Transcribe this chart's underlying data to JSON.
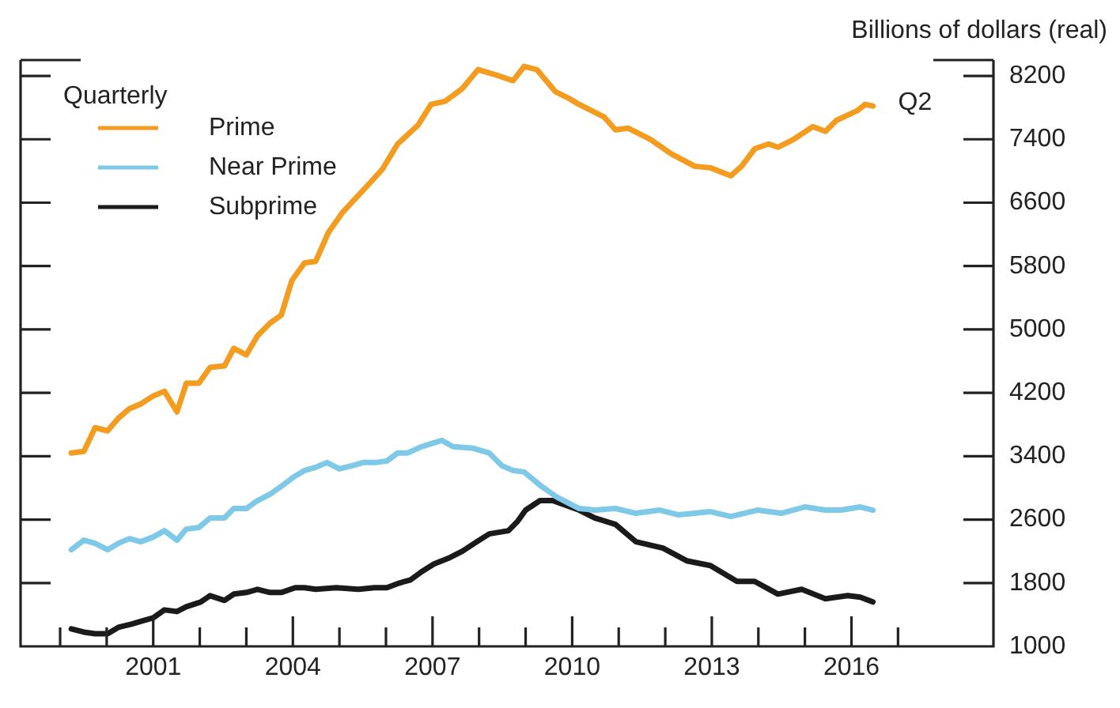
{
  "chart_data": {
    "type": "line",
    "ylabel": "Billions of dollars (real)",
    "legend_title": "Quarterly",
    "legend": "top left",
    "grid": false,
    "marker": "none",
    "line_style": "solid",
    "xlim": [
      1998.15,
      2019.05
    ],
    "ylim": [
      1000,
      8400
    ],
    "xticks": [
      {
        "value": 1999,
        "label": null
      },
      {
        "value": 2000,
        "label": null
      },
      2001,
      {
        "value": 2002,
        "label": null
      },
      {
        "value": 2003,
        "label": null
      },
      2004,
      {
        "value": 2005,
        "label": null
      },
      {
        "value": 2006,
        "label": null
      },
      2007,
      {
        "value": 2008,
        "label": null
      },
      {
        "value": 2009,
        "label": null
      },
      2010,
      {
        "value": 2011,
        "label": null
      },
      {
        "value": 2012,
        "label": null
      },
      2013,
      {
        "value": 2014,
        "label": null
      },
      {
        "value": 2015,
        "label": null
      },
      2016,
      {
        "value": 2017,
        "label": null
      }
    ],
    "yticks": [
      1000,
      1800,
      2600,
      3400,
      4200,
      5000,
      5800,
      6600,
      7400,
      8200
    ],
    "annotations": [
      {
        "text": "Q2",
        "x": 2016.46,
        "y": 7820
      }
    ],
    "series": [
      {
        "name": "Prime",
        "color": "#f39c1f",
        "x": [
          1999.24,
          1999.51,
          1999.75,
          2000.02,
          2000.25,
          2000.49,
          2000.73,
          2001.0,
          2001.24,
          2001.51,
          2001.71,
          2001.98,
          2002.22,
          2002.53,
          2002.73,
          2003.0,
          2003.24,
          2003.51,
          2003.75,
          2003.98,
          2004.25,
          2004.49,
          2004.76,
          2005.07,
          2005.61,
          2005.92,
          2006.25,
          2006.69,
          2006.97,
          2007.27,
          2007.64,
          2007.98,
          2008.32,
          2008.73,
          2008.97,
          2009.24,
          2009.64,
          2009.92,
          2010.15,
          2010.69,
          2010.93,
          2011.2,
          2011.68,
          2012.12,
          2012.63,
          2012.97,
          2013.41,
          2013.64,
          2013.92,
          2014.22,
          2014.42,
          2014.76,
          2015.17,
          2015.44,
          2015.68,
          2016.12,
          2016.29,
          2016.46
        ],
        "values": [
          3440,
          3460,
          3760,
          3720,
          3880,
          4000,
          4060,
          4160,
          4220,
          3960,
          4320,
          4320,
          4520,
          4540,
          4760,
          4680,
          4920,
          5080,
          5180,
          5620,
          5840,
          5860,
          6220,
          6480,
          6820,
          7020,
          7340,
          7580,
          7840,
          7880,
          8040,
          8280,
          8220,
          8140,
          8320,
          8280,
          8000,
          7920,
          7840,
          7680,
          7520,
          7540,
          7400,
          7220,
          7060,
          7040,
          6940,
          7060,
          7280,
          7340,
          7300,
          7400,
          7560,
          7500,
          7640,
          7760,
          7840,
          7820
        ]
      },
      {
        "name": "Near Prime",
        "color": "#7ec8e8",
        "x": [
          1999.24,
          1999.51,
          1999.75,
          2000.02,
          2000.25,
          2000.49,
          2000.73,
          2001.0,
          2001.24,
          2001.51,
          2001.71,
          2001.98,
          2002.22,
          2002.53,
          2002.73,
          2003.0,
          2003.24,
          2003.51,
          2003.75,
          2004.02,
          2004.25,
          2004.49,
          2004.73,
          2005.0,
          2005.27,
          2005.51,
          2005.78,
          2006.02,
          2006.25,
          2006.46,
          2006.76,
          2007.2,
          2007.44,
          2007.88,
          2008.22,
          2008.49,
          2008.73,
          2008.97,
          2009.34,
          2009.68,
          2010.15,
          2010.49,
          2010.93,
          2011.37,
          2011.88,
          2012.29,
          2012.97,
          2013.41,
          2013.98,
          2014.49,
          2015.0,
          2015.44,
          2015.78,
          2016.19,
          2016.46
        ],
        "values": [
          2220,
          2340,
          2300,
          2220,
          2300,
          2360,
          2320,
          2380,
          2460,
          2340,
          2480,
          2500,
          2620,
          2620,
          2740,
          2740,
          2840,
          2920,
          3020,
          3140,
          3220,
          3260,
          3320,
          3240,
          3280,
          3320,
          3320,
          3340,
          3440,
          3440,
          3520,
          3600,
          3520,
          3500,
          3440,
          3280,
          3220,
          3200,
          3020,
          2880,
          2740,
          2720,
          2740,
          2680,
          2720,
          2660,
          2700,
          2640,
          2720,
          2680,
          2760,
          2720,
          2720,
          2760,
          2720
        ]
      },
      {
        "name": "Subprime",
        "color": "#1a1a1a",
        "x": [
          1999.24,
          1999.51,
          1999.75,
          2000.02,
          2000.25,
          2000.53,
          2000.76,
          2001.0,
          2001.24,
          2001.51,
          2001.71,
          2002.02,
          2002.22,
          2002.53,
          2002.73,
          2003.0,
          2003.24,
          2003.51,
          2003.75,
          2004.05,
          2004.25,
          2004.49,
          2004.93,
          2005.41,
          2005.75,
          2006.02,
          2006.29,
          2006.53,
          2006.76,
          2007.03,
          2007.37,
          2007.64,
          2007.95,
          2008.22,
          2008.63,
          2008.83,
          2009.0,
          2009.31,
          2009.58,
          2010.15,
          2010.49,
          2010.93,
          2011.37,
          2011.95,
          2012.46,
          2012.97,
          2013.54,
          2013.92,
          2014.42,
          2014.93,
          2015.44,
          2015.92,
          2016.19,
          2016.46
        ],
        "values": [
          1220,
          1180,
          1160,
          1160,
          1240,
          1280,
          1320,
          1360,
          1460,
          1440,
          1500,
          1560,
          1640,
          1580,
          1660,
          1680,
          1720,
          1680,
          1680,
          1740,
          1740,
          1720,
          1740,
          1720,
          1740,
          1740,
          1800,
          1840,
          1940,
          2040,
          2120,
          2200,
          2320,
          2420,
          2460,
          2580,
          2720,
          2840,
          2840,
          2720,
          2620,
          2540,
          2320,
          2240,
          2080,
          2020,
          1820,
          1820,
          1660,
          1720,
          1600,
          1640,
          1620,
          1560
        ]
      }
    ]
  }
}
